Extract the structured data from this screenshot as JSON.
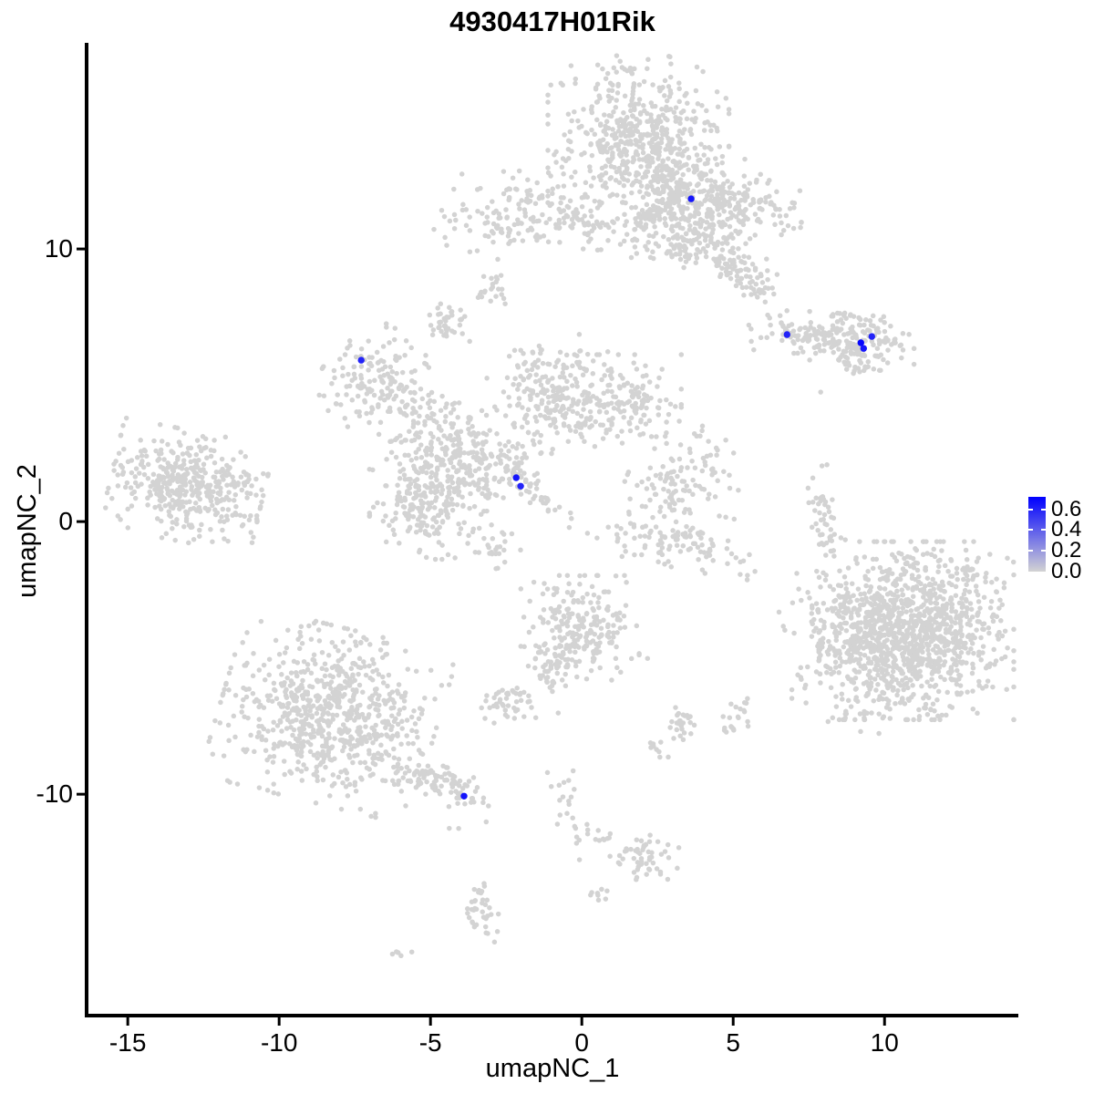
{
  "title": "4930417H01Rik",
  "axes": {
    "x_label": "umapNC_1",
    "y_label": "umapNC_2",
    "x_ticks": [
      -15,
      -10,
      -5,
      0,
      5,
      10
    ],
    "y_ticks": [
      10,
      0,
      -10
    ],
    "x_range": [
      -16.36,
      14.42
    ],
    "y_range": [
      -18.12,
      17.56
    ],
    "grid": false,
    "style": "classic-left-bottom-axes-only"
  },
  "legend": {
    "labels": [
      "0.6",
      "0.4",
      "0.2",
      "0.0"
    ],
    "values": [
      0.6,
      0.4,
      0.2,
      0.0
    ],
    "scale_min": 0.0,
    "scale_max": 0.72,
    "low_color": "#D3D3D3",
    "high_color": "#0000FF",
    "position": "right-middle"
  },
  "chart_data": {
    "type": "scatter",
    "description": "UMAP feature plot of single cells; grey points are cells with ~0 expression, blue points are cells expressing the gene. Grey cloud is summarized as gaussian cluster blobs (data coordinates).",
    "point_color": "#D3D3D3",
    "highlight_color": "#0000FF",
    "clusters": [
      {
        "name": "top-main-dense",
        "cx": 1.87,
        "cy": 14.1,
        "sx": 1.3,
        "sy": 1.3,
        "rot": 0,
        "n": 520
      },
      {
        "name": "top-main-mid",
        "cx": 3.2,
        "cy": 11.95,
        "sx": 0.95,
        "sy": 1.0,
        "rot": 0,
        "n": 260
      },
      {
        "name": "top-right-arm",
        "cx": 4.9,
        "cy": 11.6,
        "sx": 1.05,
        "sy": 0.55,
        "rot": -8,
        "n": 170
      },
      {
        "name": "top-down-arm",
        "cx": 4.9,
        "cy": 9.6,
        "sx": 1.15,
        "sy": 0.38,
        "rot": -45,
        "n": 150
      },
      {
        "name": "top-left-spur",
        "cx": 0.5,
        "cy": 11.0,
        "sx": 0.75,
        "sy": 0.3,
        "rot": 0,
        "n": 40
      },
      {
        "name": "top-below-dots-1",
        "cx": 1.87,
        "cy": 10.3,
        "sx": 0.36,
        "sy": 0.4,
        "rot": 0,
        "n": 22
      },
      {
        "name": "top-below-dots-2",
        "cx": 3.13,
        "cy": 10.0,
        "sx": 0.36,
        "sy": 0.33,
        "rot": 0,
        "n": 28
      },
      {
        "name": "upper-left-band",
        "cx": -2.05,
        "cy": 11.3,
        "sx": 1.25,
        "sy": 0.7,
        "rot": 5,
        "n": 150
      },
      {
        "name": "small-blob-a",
        "cx": -2.89,
        "cy": 8.5,
        "sx": 0.3,
        "sy": 0.3,
        "rot": 0,
        "n": 22
      },
      {
        "name": "small-blob-b",
        "cx": -4.49,
        "cy": 7.26,
        "sx": 0.36,
        "sy": 0.37,
        "rot": 0,
        "n": 40
      },
      {
        "name": "left-node",
        "cx": -6.72,
        "cy": 5.15,
        "sx": 0.8,
        "sy": 0.85,
        "rot": -30,
        "n": 150
      },
      {
        "name": "left-node-trail",
        "cx": -5.42,
        "cy": 4.15,
        "sx": 0.55,
        "sy": 0.45,
        "rot": -40,
        "n": 35
      },
      {
        "name": "central-arm-upleft",
        "cx": -4.7,
        "cy": 3.0,
        "sx": 0.85,
        "sy": 0.8,
        "rot": -20,
        "n": 120
      },
      {
        "name": "central-left-node",
        "cx": -5.06,
        "cy": 0.8,
        "sx": 0.85,
        "sy": 0.95,
        "rot": 0,
        "n": 230
      },
      {
        "name": "central-mid-link",
        "cx": -3.25,
        "cy": 2.0,
        "sx": 0.72,
        "sy": 0.67,
        "rot": -30,
        "n": 130
      },
      {
        "name": "central-top-node",
        "cx": -1.08,
        "cy": 4.68,
        "sx": 0.9,
        "sy": 0.95,
        "rot": 0,
        "n": 230
      },
      {
        "name": "central-right-node",
        "cx": 1.33,
        "cy": 4.4,
        "sx": 0.85,
        "sy": 0.75,
        "rot": 0,
        "n": 150
      },
      {
        "name": "central-diag-strip",
        "cx": -1.69,
        "cy": 1.27,
        "sx": 0.85,
        "sy": 0.18,
        "rot": -46,
        "n": 55
      },
      {
        "name": "central-lower-arc",
        "cx": 3.13,
        "cy": -0.67,
        "sx": 1.35,
        "sy": 0.5,
        "rot": -12,
        "n": 110
      },
      {
        "name": "central-lower-node",
        "cx": 3.07,
        "cy": 1.17,
        "sx": 0.72,
        "sy": 0.6,
        "rot": -20,
        "n": 70
      },
      {
        "name": "central-right-spur",
        "cx": 3.98,
        "cy": 2.24,
        "sx": 0.55,
        "sy": 0.55,
        "rot": 0,
        "n": 40
      },
      {
        "name": "central-left-drip",
        "cx": -2.71,
        "cy": -0.94,
        "sx": 0.3,
        "sy": 0.4,
        "rot": 0,
        "n": 22
      },
      {
        "name": "far-left-cluster",
        "cx": -13.04,
        "cy": 1.3,
        "sx": 1.1,
        "sy": 0.88,
        "rot": -12,
        "n": 390
      },
      {
        "name": "far-left-arm",
        "cx": -11.3,
        "cy": 1.45,
        "sx": 0.5,
        "sy": 0.22,
        "rot": 0,
        "n": 25
      },
      {
        "name": "right-mid-arm",
        "cx": 7.29,
        "cy": 6.76,
        "sx": 0.8,
        "sy": 0.3,
        "rot": -6,
        "n": 90
      },
      {
        "name": "right-mid-node",
        "cx": 9.25,
        "cy": 6.7,
        "sx": 0.75,
        "sy": 0.5,
        "rot": 0,
        "n": 150
      },
      {
        "name": "right-mid-spur",
        "cx": 8.86,
        "cy": 5.82,
        "sx": 0.36,
        "sy": 0.2,
        "rot": -30,
        "n": 18
      },
      {
        "name": "right-strip",
        "cx": 8.04,
        "cy": 0.13,
        "sx": 0.24,
        "sy": 0.9,
        "rot": 10,
        "n": 50
      },
      {
        "name": "bottom-right-main",
        "cx": 11.05,
        "cy": -4.0,
        "sx": 1.4,
        "sy": 1.42,
        "rot": 0,
        "n": 1050
      },
      {
        "name": "bottom-right-west",
        "cx": 8.8,
        "cy": -4.3,
        "sx": 0.85,
        "sy": 1.2,
        "rot": 15,
        "n": 200
      },
      {
        "name": "bottom-right-fringe",
        "cx": 9.7,
        "cy": -6.1,
        "sx": 1.2,
        "sy": 0.8,
        "rot": 0,
        "n": 55
      },
      {
        "name": "center-bottom-node",
        "cx": -0.06,
        "cy": -4.0,
        "sx": 0.85,
        "sy": 0.88,
        "rot": 0,
        "n": 230
      },
      {
        "name": "center-bottom-tail",
        "cx": -1.14,
        "cy": -5.35,
        "sx": 0.4,
        "sy": 0.4,
        "rot": 0,
        "n": 40
      },
      {
        "name": "bottom-left-main",
        "cx": -8.37,
        "cy": -7.1,
        "sx": 1.55,
        "sy": 1.4,
        "rot": -15,
        "n": 720
      },
      {
        "name": "bottom-left-tail",
        "cx": -4.82,
        "cy": -9.57,
        "sx": 0.92,
        "sy": 0.3,
        "rot": -25,
        "n": 110
      },
      {
        "name": "tail-below-dots",
        "cx": -4.16,
        "cy": -11.23,
        "sx": 0.25,
        "sy": 0.1,
        "rot": 0,
        "n": 2
      },
      {
        "name": "small-node-left",
        "cx": -2.44,
        "cy": -6.7,
        "sx": 0.4,
        "sy": 0.35,
        "rot": 0,
        "n": 45
      },
      {
        "name": "small-node-right-a",
        "cx": 3.37,
        "cy": -7.46,
        "sx": 0.28,
        "sy": 0.28,
        "rot": 0,
        "n": 25
      },
      {
        "name": "small-node-right-b",
        "cx": 5.09,
        "cy": -7.2,
        "sx": 0.21,
        "sy": 0.38,
        "rot": -20,
        "n": 22
      },
      {
        "name": "tiny-blob-a",
        "cx": 2.44,
        "cy": -8.36,
        "sx": 0.18,
        "sy": 0.23,
        "rot": 0,
        "n": 9
      },
      {
        "name": "bottom-chain",
        "cx": -0.48,
        "cy": -10.37,
        "sx": 0.22,
        "sy": 0.9,
        "rot": 15,
        "n": 25
      },
      {
        "name": "chain-dots",
        "cx": 0.72,
        "cy": -11.57,
        "sx": 0.3,
        "sy": 0.15,
        "rot": 0,
        "n": 8
      },
      {
        "name": "bottom-mid-node",
        "cx": 2.11,
        "cy": -12.31,
        "sx": 0.55,
        "sy": 0.38,
        "rot": -15,
        "n": 55
      },
      {
        "name": "tiny-blob-b",
        "cx": 0.57,
        "cy": -13.68,
        "sx": 0.15,
        "sy": 0.2,
        "rot": 0,
        "n": 8
      },
      {
        "name": "bottom-small-strip",
        "cx": -3.37,
        "cy": -14.2,
        "sx": 0.25,
        "sy": 0.6,
        "rot": 10,
        "n": 38
      },
      {
        "name": "bottom-tiny-dash",
        "cx": -5.99,
        "cy": -15.8,
        "sx": 0.2,
        "sy": 0.08,
        "rot": -20,
        "n": 5
      },
      {
        "name": "stray-a",
        "cx": 2.17,
        "cy": -5.02,
        "sx": 0,
        "sy": 0,
        "rot": 0,
        "n": 1
      },
      {
        "name": "stray-b",
        "cx": -0.78,
        "cy": -7.02,
        "sx": 0,
        "sy": 0,
        "rot": 0,
        "n": 1
      },
      {
        "name": "stray-c",
        "cx": 8.73,
        "cy": -2.27,
        "sx": 0,
        "sy": 0,
        "rot": 0,
        "n": 1
      },
      {
        "name": "stray-d",
        "cx": 7.89,
        "cy": 4.75,
        "sx": 0,
        "sy": 0,
        "rot": 0,
        "n": 1
      }
    ],
    "highlighted_points": [
      {
        "x": 3.61,
        "y": 11.84,
        "value": 0.65
      },
      {
        "x": 6.78,
        "y": 6.86,
        "value": 0.6
      },
      {
        "x": 9.22,
        "y": 6.56,
        "value": 0.7
      },
      {
        "x": 9.31,
        "y": 6.35,
        "value": 0.65
      },
      {
        "x": 9.58,
        "y": 6.79,
        "value": 0.6
      },
      {
        "x": -7.29,
        "y": 5.92,
        "value": 0.6
      },
      {
        "x": -2.17,
        "y": 1.61,
        "value": 0.65
      },
      {
        "x": -2.02,
        "y": 1.3,
        "value": 0.6
      },
      {
        "x": -3.89,
        "y": -10.07,
        "value": 0.65
      }
    ]
  }
}
